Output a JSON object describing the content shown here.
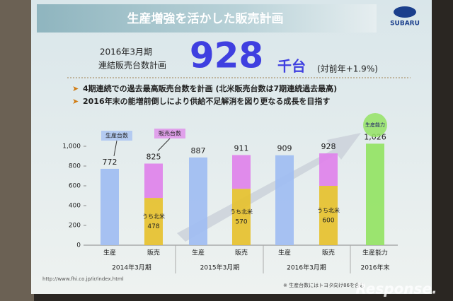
{
  "slide": {
    "title": "生産増強を活かした販売計画",
    "logo": "SUBARU",
    "headline": {
      "period": "2016年3月期",
      "label": "連結販売台数計画",
      "value": 928,
      "unit": "千台",
      "change": "(対前年+1.9%)"
    },
    "bullets": [
      "4期連続での過去最高販売台数を計画 (北米販売台数は7期連続過去最高)",
      "2016年末の能増前倒しにより供給不足解消を図り更なる成長を目指す"
    ],
    "url": "http://www.fhi.co.jp/ir/index.html",
    "footnote": "※ 生産台数にはトヨタ向け86を含む",
    "watermark": "Response."
  },
  "chart_data": {
    "type": "bar",
    "stacked": true,
    "categories": [
      "生産",
      "販売",
      "生産",
      "販売",
      "生産",
      "販売",
      "生産能力"
    ],
    "group_labels": [
      "2014年3月期",
      "2015年3月期",
      "2016年3月期",
      "2016年末"
    ],
    "series": [
      {
        "name": "生産台数",
        "color": "#9fbdf2",
        "values": [
          772,
          null,
          887,
          null,
          909,
          null,
          null
        ]
      },
      {
        "name": "うち北米",
        "color": "#e6c12e",
        "values": [
          null,
          478,
          null,
          570,
          null,
          600,
          null
        ]
      },
      {
        "name": "販売台数",
        "color": "#df82ea",
        "values": [
          null,
          347,
          null,
          341,
          null,
          328,
          null
        ]
      },
      {
        "name": "生産能力",
        "color": "#94e364",
        "values": [
          null,
          null,
          null,
          null,
          null,
          null,
          1026
        ]
      }
    ],
    "totals": [
      772,
      825,
      887,
      911,
      909,
      928,
      1026
    ],
    "total_labels": [
      "772",
      "825",
      "887",
      "911",
      "909",
      "928",
      "1,026"
    ],
    "ylim": [
      0,
      1000
    ],
    "yticks": [
      0,
      200,
      400,
      600,
      800,
      {
        "value": 1000,
        "label": "1,000"
      }
    ]
  }
}
